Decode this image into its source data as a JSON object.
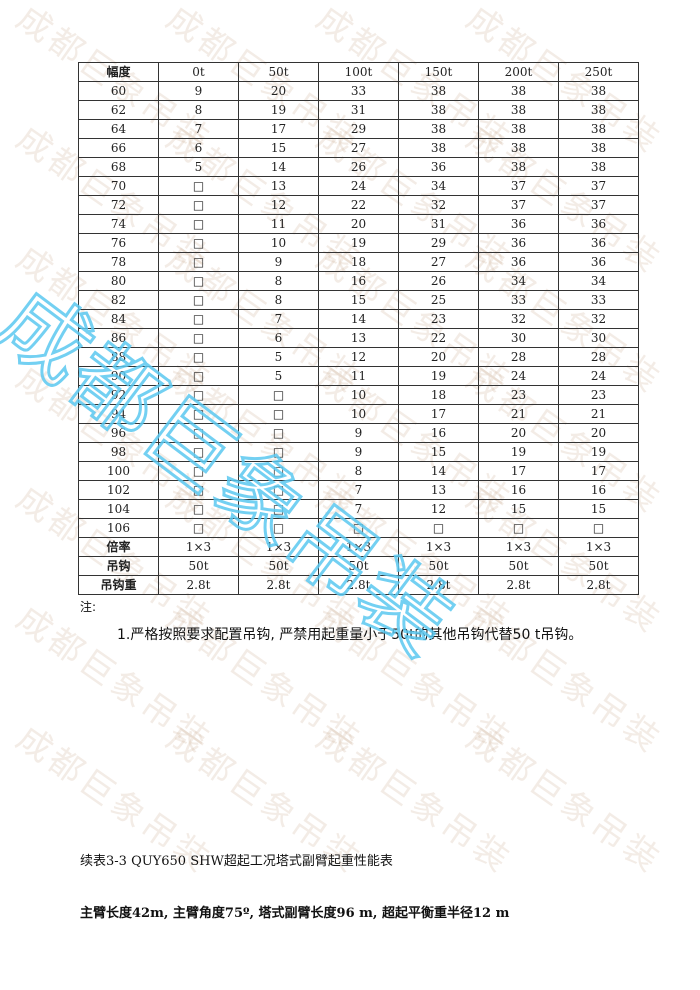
{
  "watermark": "成都巨象吊装",
  "table": {
    "headers": [
      "幅度",
      "0t",
      "50t",
      "100t",
      "150t",
      "200t",
      "250t"
    ],
    "rows": [
      [
        "60",
        "9",
        "20",
        "33",
        "38",
        "38",
        "38"
      ],
      [
        "62",
        "8",
        "19",
        "31",
        "38",
        "38",
        "38"
      ],
      [
        "64",
        "7",
        "17",
        "29",
        "38",
        "38",
        "38"
      ],
      [
        "66",
        "6",
        "15",
        "27",
        "38",
        "38",
        "38"
      ],
      [
        "68",
        "5",
        "14",
        "26",
        "36",
        "38",
        "38"
      ],
      [
        "70",
        "□",
        "13",
        "24",
        "34",
        "37",
        "37"
      ],
      [
        "72",
        "□",
        "12",
        "22",
        "32",
        "37",
        "37"
      ],
      [
        "74",
        "□",
        "11",
        "20",
        "31",
        "36",
        "36"
      ],
      [
        "76",
        "□",
        "10",
        "19",
        "29",
        "36",
        "36"
      ],
      [
        "78",
        "□",
        "9",
        "18",
        "27",
        "36",
        "36"
      ],
      [
        "80",
        "□",
        "8",
        "16",
        "26",
        "34",
        "34"
      ],
      [
        "82",
        "□",
        "8",
        "15",
        "25",
        "33",
        "33"
      ],
      [
        "84",
        "□",
        "7",
        "14",
        "23",
        "32",
        "32"
      ],
      [
        "86",
        "□",
        "6",
        "13",
        "22",
        "30",
        "30"
      ],
      [
        "88",
        "□",
        "5",
        "12",
        "20",
        "28",
        "28"
      ],
      [
        "90",
        "□",
        "5",
        "11",
        "19",
        "24",
        "24"
      ],
      [
        "92",
        "□",
        "□",
        "10",
        "18",
        "23",
        "23"
      ],
      [
        "94",
        "□",
        "□",
        "10",
        "17",
        "21",
        "21"
      ],
      [
        "96",
        "□",
        "□",
        "9",
        "16",
        "20",
        "20"
      ],
      [
        "98",
        "□",
        "□",
        "9",
        "15",
        "19",
        "19"
      ],
      [
        "100",
        "□",
        "□",
        "8",
        "14",
        "17",
        "17"
      ],
      [
        "102",
        "□",
        "□",
        "7",
        "13",
        "16",
        "16"
      ],
      [
        "104",
        "□",
        "□",
        "7",
        "12",
        "15",
        "15"
      ],
      [
        "106",
        "□",
        "□",
        "□",
        "□",
        "□",
        "□"
      ]
    ],
    "footer_rows": [
      [
        "倍率",
        "1×3",
        "1×3",
        "1×3",
        "1×3",
        "1×3",
        "1×3"
      ],
      [
        "吊钩",
        "50t",
        "50t",
        "50t",
        "50t",
        "50t",
        "50t"
      ],
      [
        "吊钩重",
        "2.8t",
        "2.8t",
        "2.8t",
        "2.8t",
        "2.8t",
        "2.8t"
      ]
    ]
  },
  "notes": {
    "heading": "注:",
    "items": [
      "1.严格按照要求配置吊钩, 严禁用起重量小于50t的其他吊钩代替50 t吊钩。"
    ]
  },
  "next_table": {
    "caption": "续表3-3 QUY650 SHW超起工况塔式副臂起重性能表",
    "subtitle": "主臂长度42m, 主臂角度75º, 塔式副臂长度96 m, 超起平衡重半径12 m"
  }
}
